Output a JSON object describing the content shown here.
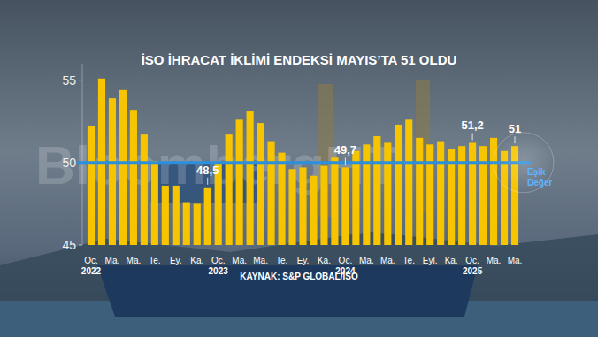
{
  "chart_data": {
    "type": "bar",
    "title": "İSO İHRACAT İKLİMİ ENDEKSİ MAYIS’TA 51 OLDU",
    "source": "KAYNAK: S&P GLOBAL/İSO",
    "watermark": "BloombergHT",
    "categories": [
      "Oc.\n2022",
      null,
      "Ma.",
      null,
      "Ma.",
      null,
      "Te.",
      null,
      "Ey.",
      null,
      "Ka.",
      null,
      "Oc.\n2023",
      null,
      "Ma.",
      null,
      "Ma.",
      null,
      "Te.",
      null,
      "Ey.",
      null,
      "Ka.",
      null,
      "Oc.\n2024",
      null,
      "Ma.",
      null,
      "Ma.",
      null,
      "Te.",
      null,
      "Eyl.",
      null,
      "Ka.",
      null,
      "Oc.\n2025",
      null,
      "Ma.",
      null,
      "Ma."
    ],
    "values": [
      52.2,
      55.1,
      53.9,
      54.4,
      53.2,
      51.7,
      50.1,
      48.6,
      48.6,
      47.6,
      47.5,
      48.5,
      50.0,
      51.7,
      52.6,
      53.1,
      52.4,
      51.3,
      50.6,
      49.6,
      49.7,
      49.2,
      49.8,
      50.3,
      49.7,
      50.7,
      51.1,
      51.6,
      51.2,
      52.3,
      52.6,
      51.5,
      51.1,
      51.3,
      50.8,
      51.0,
      51.2,
      51.0,
      51.5,
      50.7,
      51.0
    ],
    "value_labels": [
      null,
      null,
      null,
      null,
      null,
      null,
      null,
      null,
      null,
      null,
      null,
      "48,5",
      null,
      null,
      null,
      null,
      null,
      null,
      null,
      null,
      null,
      null,
      null,
      null,
      "49,7",
      null,
      null,
      null,
      null,
      null,
      null,
      null,
      null,
      null,
      null,
      null,
      "51,2",
      null,
      null,
      null,
      "51"
    ],
    "data_labels": true,
    "color": "#f6c500",
    "threshold": {
      "value": 50,
      "label": "Eşik Değer",
      "color": "#2b8fdc"
    },
    "ylim": [
      45,
      56
    ],
    "yticks": [
      45,
      50,
      55
    ],
    "grid": false
  }
}
